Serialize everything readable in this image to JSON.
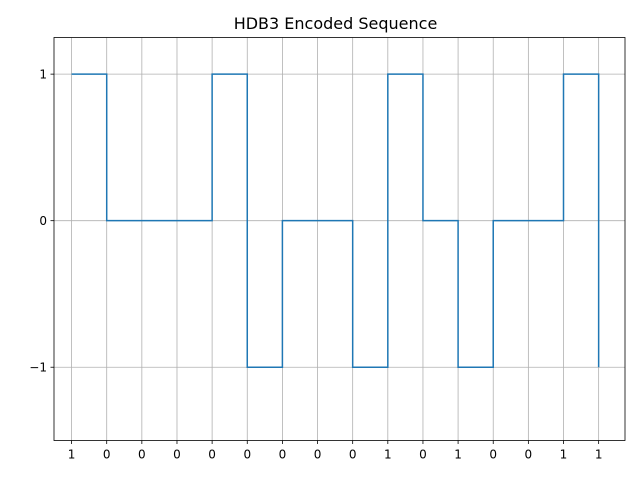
{
  "chart_data": {
    "type": "line",
    "step": "post",
    "title": "HDB3 Encoded Sequence",
    "xlabel": "",
    "ylabel": "",
    "x_tick_labels": [
      "1",
      "0",
      "0",
      "0",
      "0",
      "0",
      "0",
      "0",
      "0",
      "1",
      "0",
      "1",
      "0",
      "0",
      "1",
      "1"
    ],
    "y_ticks": [
      -1,
      0,
      1
    ],
    "y_tick_labels": [
      "−1",
      "0",
      "1"
    ],
    "xlim": [
      -0.5,
      15.75
    ],
    "ylim": [
      -1.5,
      1.25
    ],
    "grid": true,
    "series": [
      {
        "color": "#1f77b4",
        "values": [
          1,
          0,
          0,
          0,
          1,
          -1,
          0,
          0,
          -1,
          1,
          0,
          -1,
          0,
          0,
          1,
          -1
        ]
      }
    ]
  }
}
